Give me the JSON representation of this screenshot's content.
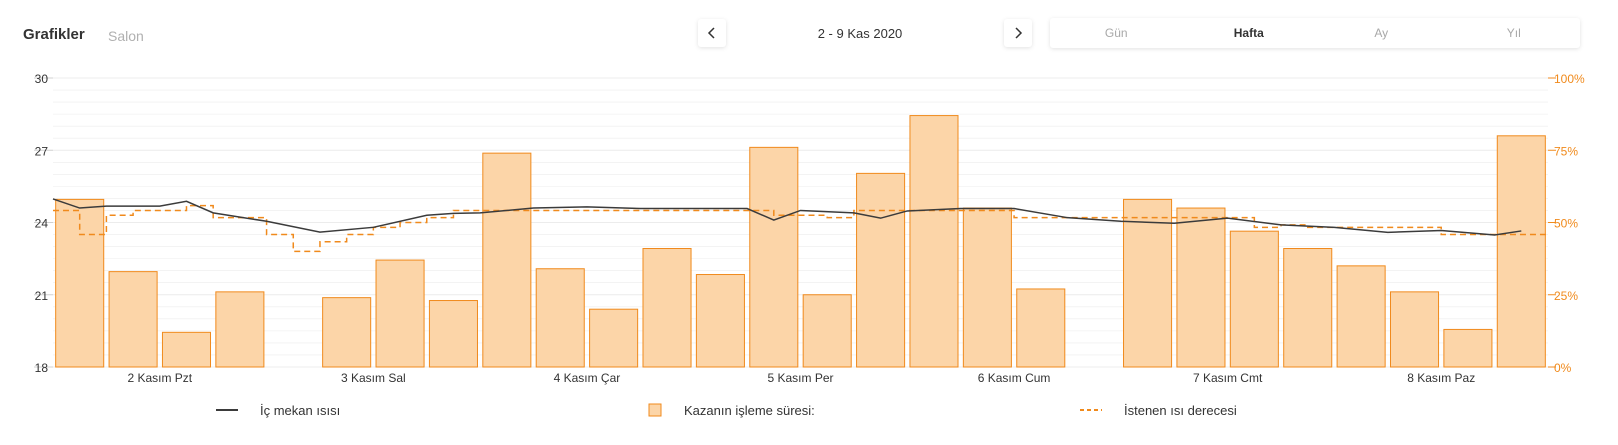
{
  "header": {
    "title": "Grafikler",
    "subtitle": "Salon",
    "date_range": "2 - 9 Kas 2020",
    "prev_icon": "chevron-left-icon",
    "next_icon": "chevron-right-icon",
    "tabs": [
      {
        "label": "Gün",
        "active": false
      },
      {
        "label": "Hafta",
        "active": true
      },
      {
        "label": "Ay",
        "active": false
      },
      {
        "label": "Yıl",
        "active": false
      }
    ]
  },
  "colors": {
    "accent": "#f08a1c",
    "bar_fill": "#fcd5a8",
    "bar_stroke": "#f08a1c",
    "line": "#3b3b3b",
    "grid": "#ececec"
  },
  "chart_data": {
    "type": "bar",
    "x_range": [
      0,
      28
    ],
    "left_axis": {
      "ylim": [
        18,
        30
      ],
      "ticks": [
        18,
        21,
        24,
        27,
        30
      ]
    },
    "right_axis": {
      "ylim": [
        0,
        100
      ],
      "ticks": [
        "0%",
        "25%",
        "50%",
        "75%",
        "100%"
      ]
    },
    "day_labels": [
      {
        "x": 2,
        "label": "2 Kasım Pzt"
      },
      {
        "x": 6,
        "label": "3 Kasım Sal"
      },
      {
        "x": 10,
        "label": "4 Kasım Çar"
      },
      {
        "x": 14,
        "label": "5 Kasım Per"
      },
      {
        "x": 18,
        "label": "6 Kasım Cum"
      },
      {
        "x": 22,
        "label": "7 Kasım Cmt"
      },
      {
        "x": 26,
        "label": "8 Kasım Paz"
      }
    ],
    "series": [
      {
        "name": "Kazanın işleme süresi:",
        "type": "bar",
        "axis": "right",
        "x": [
          0.5,
          1.5,
          2.5,
          3.5,
          5.5,
          6.5,
          7.5,
          8.5,
          9.5,
          10.5,
          11.5,
          12.5,
          13.5,
          14.5,
          15.5,
          16.5,
          17.5,
          18.5,
          20.5,
          21.5,
          22.5,
          23.5,
          24.5,
          25.5,
          26.5,
          27.5
        ],
        "values": [
          58,
          33,
          12,
          26,
          24,
          37,
          23,
          74,
          34,
          20,
          41,
          32,
          76,
          25,
          67,
          87,
          55,
          27,
          58,
          55,
          47,
          41,
          35,
          26,
          13,
          80
        ]
      },
      {
        "name": "İç mekan ısısı",
        "type": "line",
        "axis": "left",
        "x": [
          0,
          0.5,
          1,
          2,
          2.5,
          3,
          4,
          5,
          6,
          7,
          7.5,
          8,
          9,
          10,
          11,
          12,
          13,
          13.5,
          14,
          15,
          15.5,
          16,
          17,
          18,
          19,
          20,
          21,
          22,
          23,
          24,
          25,
          26,
          27,
          27.5
        ],
        "values": [
          24.98,
          24.6,
          24.68,
          24.68,
          24.88,
          24.4,
          24.05,
          23.6,
          23.8,
          24.3,
          24.38,
          24.4,
          24.6,
          24.65,
          24.58,
          24.58,
          24.58,
          24.1,
          24.5,
          24.4,
          24.18,
          24.48,
          24.58,
          24.58,
          24.2,
          24.05,
          23.97,
          24.18,
          23.9,
          23.8,
          23.59,
          23.67,
          23.48,
          23.65
        ]
      },
      {
        "name": "İstenen ısı derecesi",
        "type": "step",
        "axis": "left",
        "x": [
          0,
          0.5,
          1,
          1.5,
          2,
          2.5,
          3,
          3.5,
          4,
          4.5,
          5,
          5.5,
          6,
          6.5,
          7,
          7.5,
          8,
          8.5,
          9,
          9.5,
          10,
          10.5,
          11,
          11.5,
          12,
          12.5,
          13,
          13.5,
          14,
          14.5,
          15,
          15.5,
          16,
          16.5,
          17,
          17.5,
          18,
          18.5,
          19,
          19.5,
          20,
          20.5,
          21,
          21.5,
          22,
          22.5,
          23,
          23.5,
          24,
          24.5,
          25,
          25.5,
          26,
          26.5,
          27,
          27.5
        ],
        "values": [
          24.5,
          23.5,
          24.3,
          24.5,
          24.5,
          24.7,
          24.2,
          24.2,
          23.5,
          22.8,
          23.2,
          23.5,
          23.8,
          24,
          24.2,
          24.5,
          24.5,
          24.5,
          24.5,
          24.5,
          24.5,
          24.5,
          24.5,
          24.5,
          24.5,
          24.5,
          24.5,
          24.3,
          24.3,
          24.2,
          24.5,
          24.5,
          24.5,
          24.5,
          24.5,
          24.5,
          24.2,
          24.2,
          24.2,
          24.2,
          24.2,
          24.2,
          24.2,
          24.2,
          24.2,
          23.8,
          23.9,
          23.8,
          23.8,
          23.8,
          23.8,
          23.8,
          23.5,
          23.5,
          23.5,
          23.5
        ]
      }
    ]
  }
}
